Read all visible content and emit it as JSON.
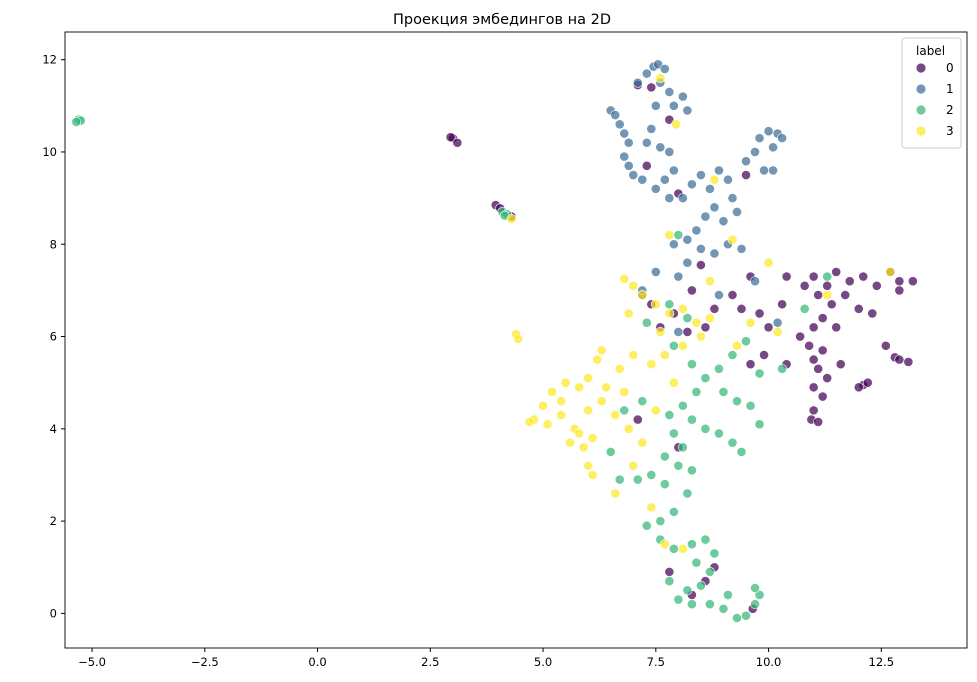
{
  "chart_data": {
    "type": "scatter",
    "title": "Проекция эмбедингов на 2D",
    "xlabel": "",
    "ylabel": "",
    "xlim": [
      -5.6,
      14.4
    ],
    "ylim": [
      -0.75,
      12.6
    ],
    "xticks": [
      -5.0,
      -2.5,
      0.0,
      2.5,
      5.0,
      7.5,
      10.0,
      12.5
    ],
    "xtick_labels": [
      "−5.0",
      "−2.5",
      "0.0",
      "2.5",
      "5.0",
      "7.5",
      "10.0",
      "12.5"
    ],
    "yticks": [
      0,
      2,
      4,
      6,
      8,
      10,
      12
    ],
    "ytick_labels": [
      "0",
      "2",
      "4",
      "6",
      "8",
      "10",
      "12"
    ],
    "grid": false,
    "legend": {
      "title": "label",
      "placement": "top-right"
    },
    "series": [
      {
        "name": "0",
        "color": "#440154",
        "points": [
          [
            3.0,
            10.3
          ],
          [
            3.1,
            10.2
          ],
          [
            2.95,
            10.32
          ],
          [
            3.95,
            8.85
          ],
          [
            4.05,
            8.78
          ],
          [
            4.3,
            8.6
          ],
          [
            7.1,
            11.45
          ],
          [
            7.4,
            11.4
          ],
          [
            7.8,
            10.7
          ],
          [
            7.3,
            9.7
          ],
          [
            8.0,
            9.1
          ],
          [
            9.5,
            9.5
          ],
          [
            8.5,
            7.55
          ],
          [
            11.0,
            7.3
          ],
          [
            11.3,
            7.1
          ],
          [
            11.5,
            7.4
          ],
          [
            11.8,
            7.2
          ],
          [
            12.1,
            7.3
          ],
          [
            12.4,
            7.1
          ],
          [
            12.7,
            7.4
          ],
          [
            12.9,
            7.2
          ],
          [
            13.2,
            7.2
          ],
          [
            12.9,
            7.0
          ],
          [
            10.4,
            7.3
          ],
          [
            10.8,
            7.1
          ],
          [
            11.1,
            6.9
          ],
          [
            11.4,
            6.7
          ],
          [
            11.7,
            6.9
          ],
          [
            12.0,
            6.6
          ],
          [
            12.3,
            6.5
          ],
          [
            11.2,
            6.4
          ],
          [
            11.0,
            6.2
          ],
          [
            11.5,
            6.2
          ],
          [
            10.7,
            6.0
          ],
          [
            10.9,
            5.8
          ],
          [
            11.2,
            5.7
          ],
          [
            11.0,
            5.5
          ],
          [
            11.1,
            5.3
          ],
          [
            11.3,
            5.1
          ],
          [
            11.0,
            4.9
          ],
          [
            11.2,
            4.7
          ],
          [
            11.0,
            4.4
          ],
          [
            10.95,
            4.2
          ],
          [
            11.1,
            4.15
          ],
          [
            12.1,
            4.95
          ],
          [
            12.0,
            4.9
          ],
          [
            12.2,
            5.0
          ],
          [
            12.8,
            5.55
          ],
          [
            12.9,
            5.5
          ],
          [
            13.1,
            5.45
          ],
          [
            12.6,
            5.8
          ],
          [
            10.3,
            6.7
          ],
          [
            10.0,
            6.2
          ],
          [
            9.8,
            6.5
          ],
          [
            9.4,
            6.6
          ],
          [
            9.2,
            6.9
          ],
          [
            8.8,
            6.6
          ],
          [
            8.6,
            6.2
          ],
          [
            8.2,
            6.1
          ],
          [
            7.9,
            6.5
          ],
          [
            7.6,
            6.2
          ],
          [
            7.4,
            6.7
          ],
          [
            7.2,
            6.9
          ],
          [
            8.3,
            7.0
          ],
          [
            9.6,
            7.3
          ],
          [
            9.9,
            5.6
          ],
          [
            10.4,
            5.4
          ],
          [
            11.6,
            5.4
          ],
          [
            9.6,
            5.4
          ],
          [
            8.8,
            1.0
          ],
          [
            7.8,
            0.9
          ],
          [
            9.65,
            0.1
          ],
          [
            8.3,
            0.4
          ],
          [
            8.6,
            0.7
          ],
          [
            8.0,
            3.6
          ],
          [
            7.1,
            4.2
          ]
        ]
      },
      {
        "name": "1",
        "color": "#3b6e96",
        "points": [
          [
            6.5,
            10.9
          ],
          [
            6.6,
            10.8
          ],
          [
            6.7,
            10.6
          ],
          [
            6.8,
            10.4
          ],
          [
            6.9,
            10.2
          ],
          [
            6.8,
            9.9
          ],
          [
            6.9,
            9.7
          ],
          [
            7.0,
            9.5
          ],
          [
            7.2,
            9.4
          ],
          [
            7.1,
            11.5
          ],
          [
            7.3,
            11.7
          ],
          [
            7.45,
            11.85
          ],
          [
            7.55,
            11.9
          ],
          [
            7.7,
            11.8
          ],
          [
            7.6,
            11.5
          ],
          [
            7.8,
            11.3
          ],
          [
            7.9,
            11.0
          ],
          [
            8.1,
            11.2
          ],
          [
            8.2,
            10.9
          ],
          [
            7.5,
            11.0
          ],
          [
            7.4,
            10.5
          ],
          [
            7.3,
            10.2
          ],
          [
            7.6,
            10.1
          ],
          [
            7.8,
            10.0
          ],
          [
            7.9,
            9.6
          ],
          [
            7.7,
            9.4
          ],
          [
            7.5,
            9.2
          ],
          [
            7.8,
            9.0
          ],
          [
            8.1,
            9.0
          ],
          [
            8.3,
            9.3
          ],
          [
            8.5,
            9.5
          ],
          [
            8.7,
            9.2
          ],
          [
            8.9,
            9.6
          ],
          [
            9.1,
            9.4
          ],
          [
            9.2,
            9.0
          ],
          [
            9.3,
            8.7
          ],
          [
            9.0,
            8.5
          ],
          [
            8.8,
            8.8
          ],
          [
            8.6,
            8.6
          ],
          [
            8.4,
            8.3
          ],
          [
            8.2,
            8.1
          ],
          [
            8.5,
            7.9
          ],
          [
            8.8,
            7.8
          ],
          [
            9.1,
            8.0
          ],
          [
            9.4,
            7.9
          ],
          [
            9.5,
            9.8
          ],
          [
            9.7,
            10.0
          ],
          [
            9.8,
            10.3
          ],
          [
            10.0,
            10.45
          ],
          [
            10.2,
            10.4
          ],
          [
            10.3,
            10.3
          ],
          [
            10.1,
            10.1
          ],
          [
            9.9,
            9.6
          ],
          [
            10.1,
            9.6
          ],
          [
            7.9,
            8.0
          ],
          [
            8.2,
            7.6
          ],
          [
            7.5,
            7.4
          ],
          [
            8.0,
            7.3
          ],
          [
            7.2,
            7.0
          ],
          [
            9.7,
            7.2
          ],
          [
            10.2,
            6.3
          ],
          [
            8.9,
            6.9
          ],
          [
            8.0,
            6.1
          ]
        ]
      },
      {
        "name": "2",
        "color": "#35b779",
        "points": [
          [
            -5.3,
            10.7
          ],
          [
            -5.25,
            10.68
          ],
          [
            -5.35,
            10.65
          ],
          [
            4.1,
            8.7
          ],
          [
            4.2,
            8.65
          ],
          [
            4.15,
            8.62
          ],
          [
            8.0,
            8.2
          ],
          [
            7.3,
            6.3
          ],
          [
            7.8,
            6.7
          ],
          [
            8.2,
            6.4
          ],
          [
            7.9,
            5.8
          ],
          [
            8.3,
            5.4
          ],
          [
            8.6,
            5.1
          ],
          [
            8.9,
            5.3
          ],
          [
            9.2,
            5.6
          ],
          [
            9.5,
            5.9
          ],
          [
            9.8,
            5.2
          ],
          [
            10.3,
            5.3
          ],
          [
            9.0,
            4.8
          ],
          [
            9.3,
            4.6
          ],
          [
            9.6,
            4.5
          ],
          [
            8.4,
            4.8
          ],
          [
            8.1,
            4.5
          ],
          [
            7.8,
            4.3
          ],
          [
            8.3,
            4.2
          ],
          [
            8.6,
            4.0
          ],
          [
            8.9,
            3.9
          ],
          [
            9.2,
            3.7
          ],
          [
            9.4,
            3.5
          ],
          [
            7.9,
            3.9
          ],
          [
            8.1,
            3.6
          ],
          [
            7.7,
            3.4
          ],
          [
            8.0,
            3.2
          ],
          [
            8.3,
            3.1
          ],
          [
            7.4,
            3.0
          ],
          [
            7.1,
            2.9
          ],
          [
            7.7,
            2.8
          ],
          [
            8.2,
            2.6
          ],
          [
            7.9,
            2.2
          ],
          [
            7.6,
            2.0
          ],
          [
            7.3,
            1.9
          ],
          [
            7.6,
            1.6
          ],
          [
            7.9,
            1.4
          ],
          [
            8.3,
            1.5
          ],
          [
            8.6,
            1.6
          ],
          [
            8.8,
            1.3
          ],
          [
            8.4,
            1.1
          ],
          [
            8.7,
            0.9
          ],
          [
            8.5,
            0.6
          ],
          [
            8.2,
            0.5
          ],
          [
            8.0,
            0.3
          ],
          [
            8.3,
            0.2
          ],
          [
            8.7,
            0.2
          ],
          [
            9.0,
            0.1
          ],
          [
            9.3,
            -0.1
          ],
          [
            9.5,
            -0.05
          ],
          [
            9.7,
            0.2
          ],
          [
            9.8,
            0.4
          ],
          [
            9.7,
            0.55
          ],
          [
            9.1,
            0.4
          ],
          [
            7.8,
            0.7
          ],
          [
            7.2,
            4.6
          ],
          [
            6.8,
            4.4
          ],
          [
            6.5,
            3.5
          ],
          [
            6.7,
            2.9
          ],
          [
            9.8,
            4.1
          ],
          [
            10.8,
            6.6
          ],
          [
            11.3,
            7.3
          ]
        ]
      },
      {
        "name": "3",
        "color": "#fde725",
        "points": [
          [
            4.3,
            8.55
          ],
          [
            4.4,
            6.05
          ],
          [
            4.45,
            5.95
          ],
          [
            7.6,
            11.6
          ],
          [
            7.95,
            10.6
          ],
          [
            8.8,
            9.4
          ],
          [
            9.2,
            8.1
          ],
          [
            7.8,
            8.2
          ],
          [
            8.7,
            7.2
          ],
          [
            10.0,
            7.6
          ],
          [
            6.8,
            7.25
          ],
          [
            7.0,
            7.1
          ],
          [
            7.2,
            6.9
          ],
          [
            7.5,
            6.7
          ],
          [
            7.8,
            6.5
          ],
          [
            8.1,
            6.6
          ],
          [
            8.4,
            6.3
          ],
          [
            8.7,
            6.4
          ],
          [
            8.5,
            6.0
          ],
          [
            8.1,
            5.8
          ],
          [
            7.7,
            5.6
          ],
          [
            7.4,
            5.4
          ],
          [
            7.0,
            5.6
          ],
          [
            6.7,
            5.3
          ],
          [
            6.3,
            5.7
          ],
          [
            6.2,
            5.5
          ],
          [
            6.0,
            5.1
          ],
          [
            5.8,
            4.9
          ],
          [
            5.5,
            5.0
          ],
          [
            5.2,
            4.8
          ],
          [
            5.0,
            4.5
          ],
          [
            4.8,
            4.2
          ],
          [
            4.7,
            4.15
          ],
          [
            5.1,
            4.1
          ],
          [
            5.4,
            4.3
          ],
          [
            5.7,
            4.0
          ],
          [
            6.0,
            4.4
          ],
          [
            6.3,
            4.6
          ],
          [
            6.6,
            4.3
          ],
          [
            6.9,
            4.0
          ],
          [
            7.2,
            3.7
          ],
          [
            6.1,
            3.8
          ],
          [
            5.9,
            3.6
          ],
          [
            6.0,
            3.2
          ],
          [
            6.1,
            3.0
          ],
          [
            5.8,
            3.9
          ],
          [
            5.6,
            3.7
          ],
          [
            5.4,
            4.6
          ],
          [
            6.4,
            4.9
          ],
          [
            6.8,
            4.8
          ],
          [
            7.5,
            4.4
          ],
          [
            7.0,
            3.2
          ],
          [
            6.6,
            2.6
          ],
          [
            7.4,
            2.3
          ],
          [
            7.7,
            1.5
          ],
          [
            8.1,
            1.4
          ],
          [
            7.9,
            5.0
          ],
          [
            9.3,
            5.8
          ],
          [
            9.6,
            6.3
          ],
          [
            10.2,
            6.1
          ],
          [
            11.3,
            6.9
          ],
          [
            12.7,
            7.4
          ],
          [
            6.9,
            6.5
          ],
          [
            7.6,
            6.1
          ]
        ]
      }
    ]
  }
}
